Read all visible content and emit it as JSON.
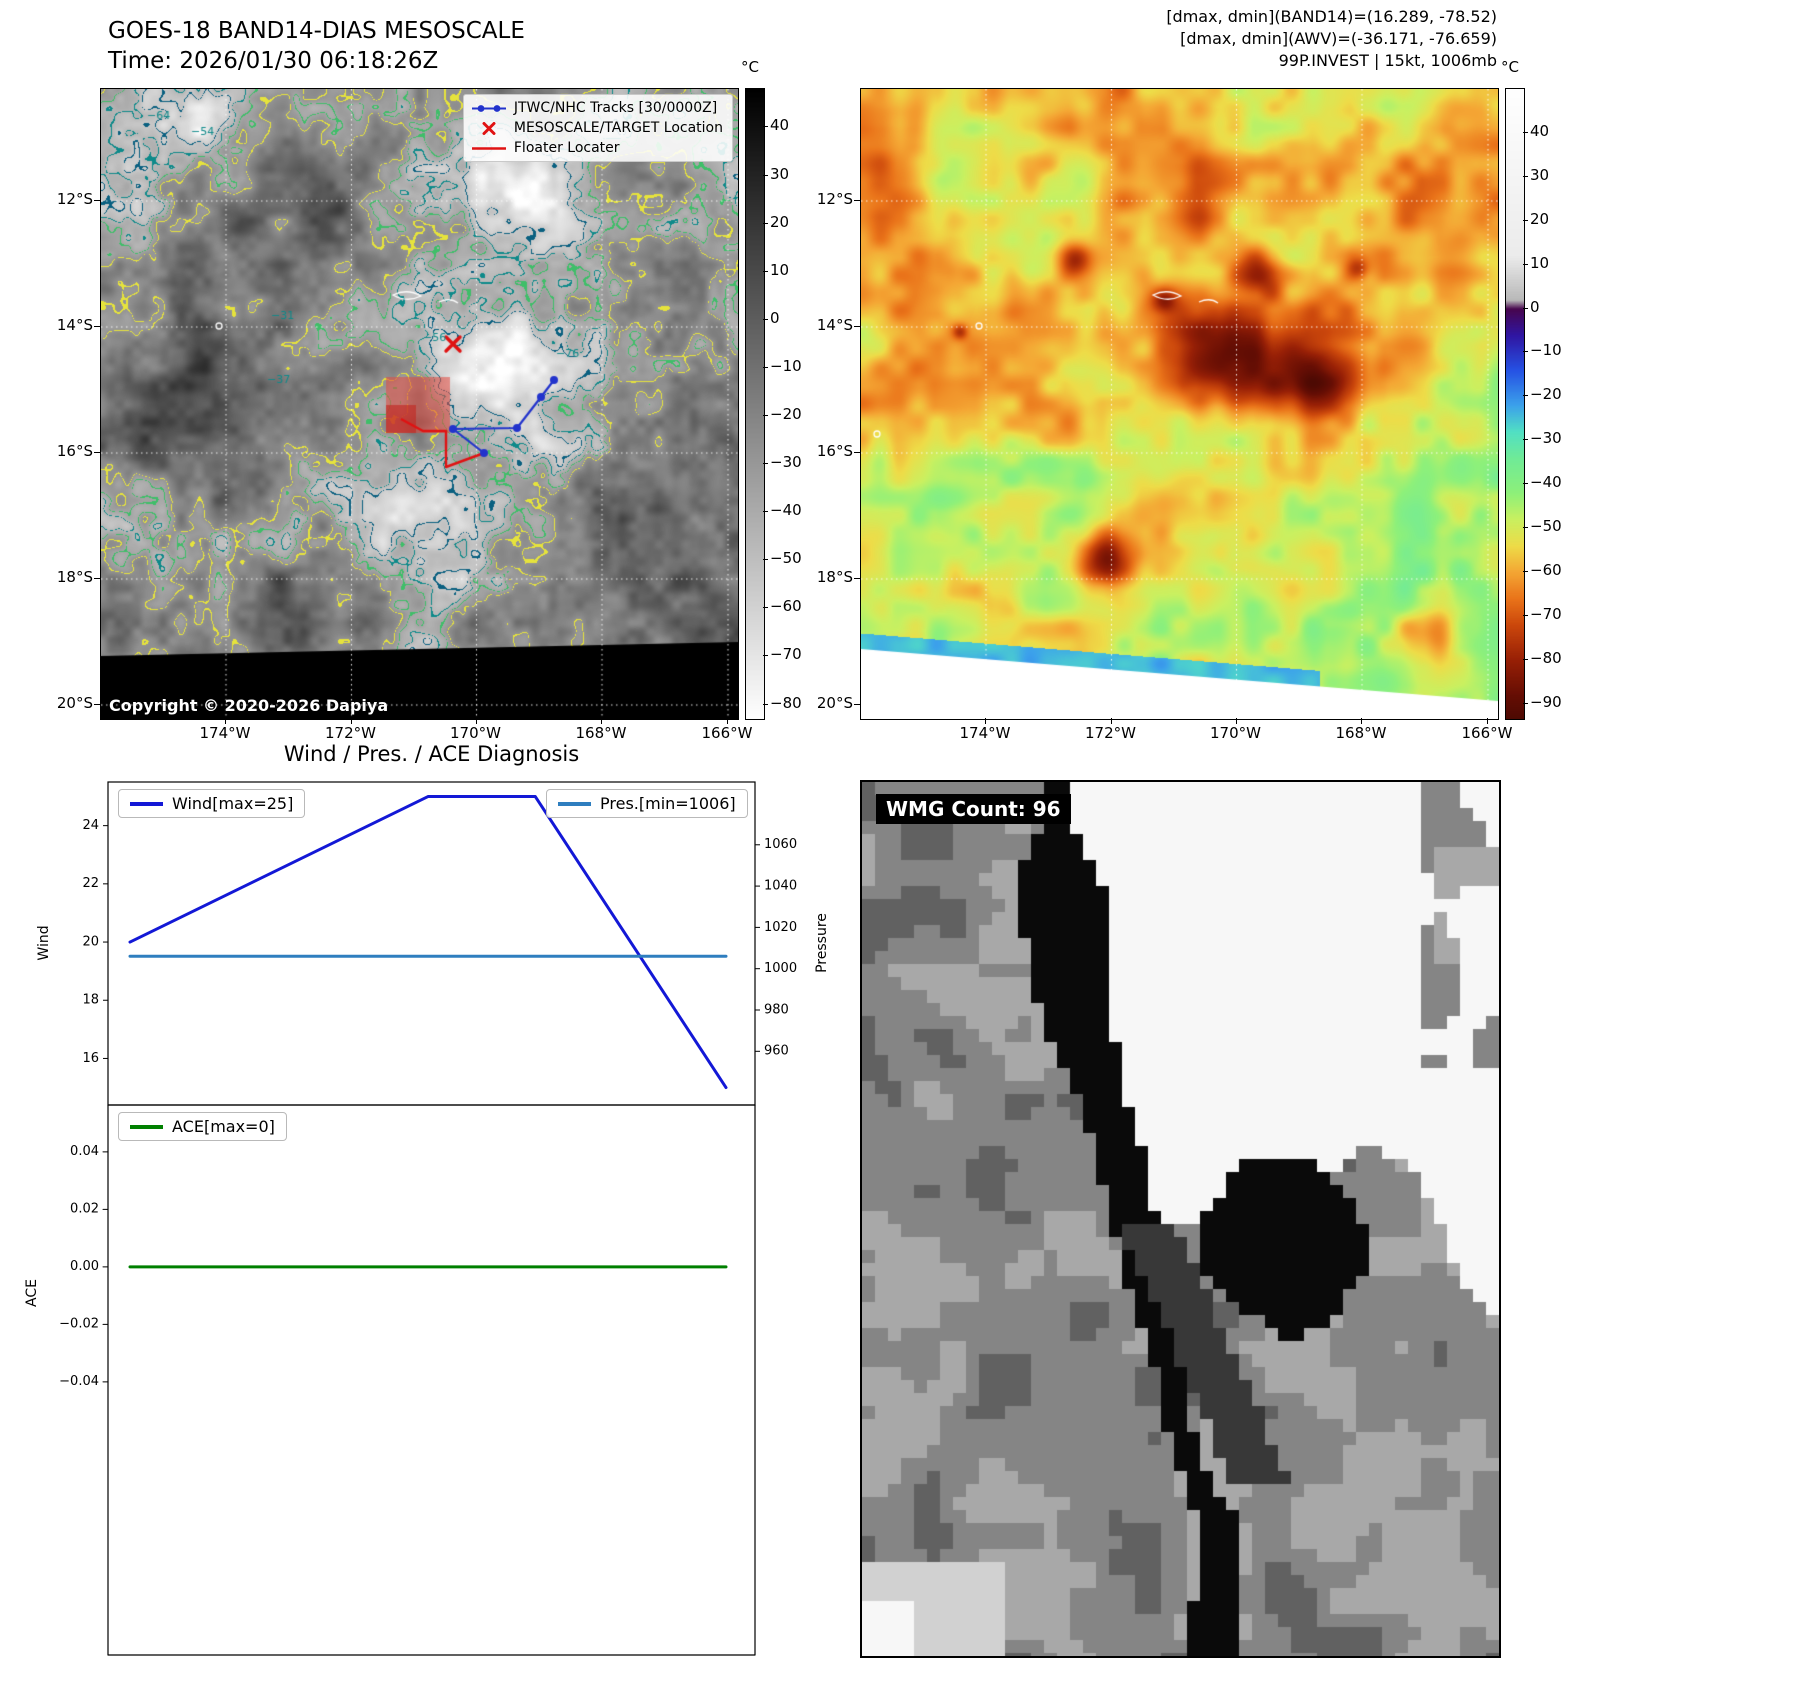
{
  "titles": {
    "main_line1": "GOES-18 BAND14-DIAS MESOSCALE",
    "main_line2": "Time: 2026/01/30 06:18:26Z"
  },
  "info": {
    "line1": "[dmax, dmin](BAND14)=(16.289, -78.52)",
    "line2": "[dmax, dmin](AWV)=(-36.171, -76.659)",
    "line3": "99P.INVEST | 15kt, 1006mb"
  },
  "colors": {
    "contour_yellow": "#e6e33c",
    "contour_green": "#3fbe69",
    "contour_teal": "#0e8a8a",
    "contour_deep": "#0a6080",
    "track_blue": "#2233cc",
    "marker_red": "#e01212"
  },
  "band14": {
    "legend": [
      {
        "label": "JTWC/NHC Tracks [30/0000Z]",
        "marker": "track"
      },
      {
        "label": "MESOSCALE/TARGET Location",
        "marker": "x"
      },
      {
        "label": "Floater Locater",
        "marker": "line"
      }
    ],
    "copyright": "Copyright © 2020-2026 Dapiya",
    "contour_labels": [
      "−64",
      "−54",
      "−31",
      "−37",
      "−56",
      "−76"
    ],
    "lat_ticks": [
      "12°S",
      "14°S",
      "16°S",
      "18°S",
      "20°S"
    ],
    "lon_ticks": [
      "174°W",
      "172°W",
      "170°W",
      "168°W",
      "166°W"
    ],
    "colorbar_unit": "°C",
    "colorbar_ticks": [
      "40",
      "30",
      "20",
      "10",
      "0",
      "−10",
      "−20",
      "−30",
      "−40",
      "−50",
      "−60",
      "−70",
      "−80"
    ]
  },
  "awv": {
    "lat_ticks": [
      "12°S",
      "14°S",
      "16°S",
      "18°S",
      "20°S"
    ],
    "lon_ticks": [
      "174°W",
      "172°W",
      "170°W",
      "168°W",
      "166°W"
    ],
    "colorbar_unit": "°C",
    "colorbar_ticks": [
      "40",
      "30",
      "20",
      "10",
      "0",
      "−10",
      "−20",
      "−30",
      "−40",
      "−50",
      "−60",
      "−70",
      "−80",
      "−90"
    ]
  },
  "wmg": {
    "label": "WMG Count: 96"
  },
  "chart_data": [
    {
      "type": "line",
      "title": "Wind / Pres. / ACE Diagnosis",
      "grid": false,
      "legend_position": "top",
      "series": [
        {
          "name": "Wind[max=25]",
          "axis": "left",
          "color": "#1318d6",
          "x": [
            0,
            0.5,
            0.68,
            1.0
          ],
          "values": [
            20,
            25,
            25,
            15
          ]
        },
        {
          "name": "Pres.[min=1006]",
          "axis": "right",
          "color": "#2e7ebf",
          "x": [
            0,
            1.0
          ],
          "values": [
            1006,
            1006
          ]
        }
      ],
      "left_axis": {
        "label": "Wind",
        "lim": [
          14.4,
          25.5
        ],
        "ticks": [
          24,
          22,
          20,
          18,
          16
        ]
      },
      "right_axis": {
        "label": "Pressure",
        "lim": [
          934,
          1090.4
        ],
        "ticks": [
          1060,
          1040,
          1020,
          1000,
          980,
          960
        ]
      }
    },
    {
      "type": "line",
      "grid": false,
      "series": [
        {
          "name": "ACE[max=0]",
          "axis": "left",
          "color": "#008000",
          "x": [
            0,
            1.0
          ],
          "values": [
            0,
            0
          ]
        }
      ],
      "left_axis": {
        "label": "ACE",
        "lim": [
          -0.135,
          0.0563
        ],
        "ticks": [
          0.04,
          0.02,
          0,
          -0.02,
          -0.04
        ],
        "tick_labels": [
          "0.04",
          "0.02",
          "0.00",
          "−0.02",
          "−0.04"
        ]
      }
    }
  ]
}
